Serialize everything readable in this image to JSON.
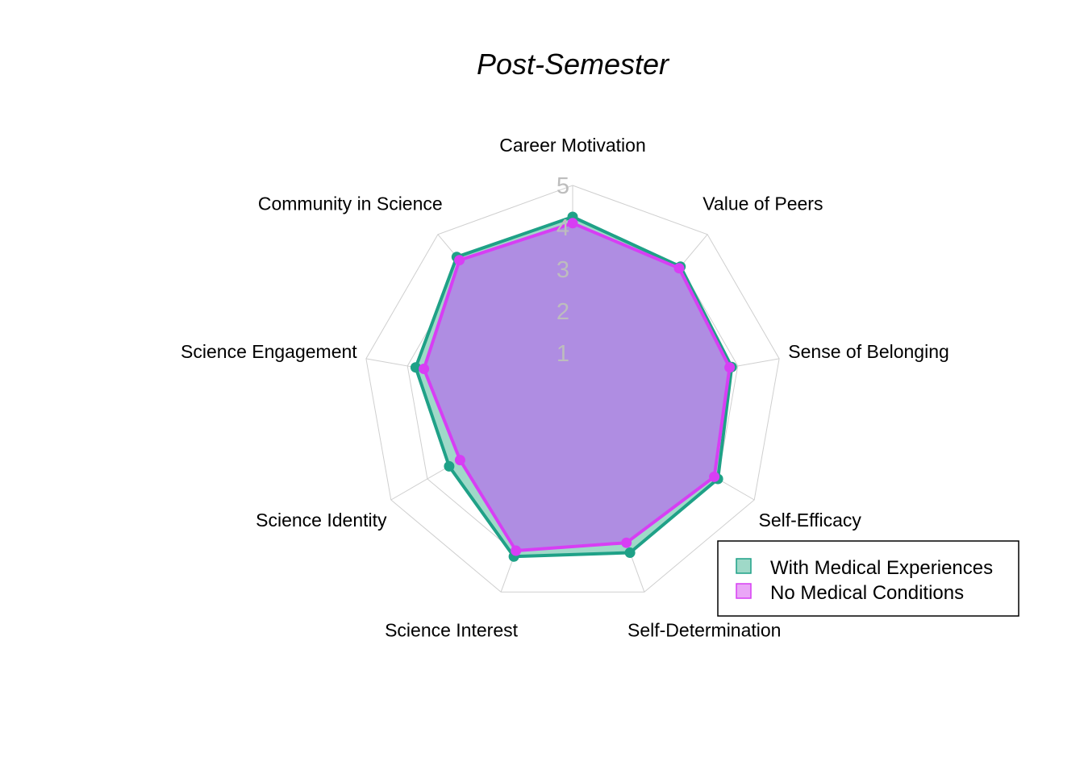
{
  "chart_data": {
    "type": "radar",
    "title": "Post-Semester",
    "axes": [
      "Career Motivation",
      "Value of Peers",
      "Sense of Belonging",
      "Self-Efficacy",
      "Self-Determination",
      "Science Interest",
      "Science Identity",
      "Science Engagement",
      "Community in Science"
    ],
    "scale": {
      "min": 0,
      "max": 5,
      "ticks": [
        1,
        2,
        3,
        4,
        5
      ]
    },
    "series": [
      {
        "name": "With Medical Experiences",
        "color": "#1fa187",
        "fill": "#9fd9c8",
        "values": [
          4.25,
          4.0,
          3.85,
          4.0,
          4.0,
          4.1,
          3.4,
          3.8,
          4.3
        ]
      },
      {
        "name": "No Medical Conditions",
        "color": "#d73ef4",
        "fill": "#b27fe6",
        "values": [
          4.1,
          3.95,
          3.8,
          3.9,
          3.75,
          3.95,
          3.1,
          3.6,
          4.2
        ]
      }
    ],
    "legend": {
      "position": "bottom-right"
    },
    "grid": true
  }
}
